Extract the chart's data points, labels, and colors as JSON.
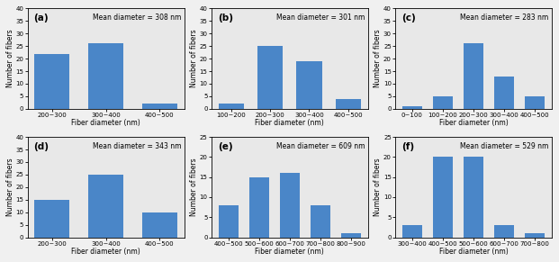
{
  "subplots": [
    {
      "label": "(a)",
      "mean_text": "Mean diameter = 308 nm",
      "categories": [
        "200~300",
        "300~400",
        "400~500"
      ],
      "values": [
        22,
        26,
        2
      ],
      "ylim": [
        0,
        40
      ],
      "yticks": [
        0,
        5,
        10,
        15,
        20,
        25,
        30,
        35,
        40
      ]
    },
    {
      "label": "(b)",
      "mean_text": "Mean diameter = 301 nm",
      "categories": [
        "100~200",
        "200~300",
        "300~400",
        "400~500"
      ],
      "values": [
        2,
        25,
        19,
        4
      ],
      "ylim": [
        0,
        40
      ],
      "yticks": [
        0,
        5,
        10,
        15,
        20,
        25,
        30,
        35,
        40
      ]
    },
    {
      "label": "(c)",
      "mean_text": "Mean diameter = 283 nm",
      "categories": [
        "0~100",
        "100~200",
        "200~300",
        "300~400",
        "400~500"
      ],
      "values": [
        1,
        5,
        26,
        13,
        5
      ],
      "ylim": [
        0,
        40
      ],
      "yticks": [
        0,
        5,
        10,
        15,
        20,
        25,
        30,
        35,
        40
      ]
    },
    {
      "label": "(d)",
      "mean_text": "Mean diameter = 343 nm",
      "categories": [
        "200~300",
        "300~400",
        "400~500"
      ],
      "values": [
        15,
        25,
        10
      ],
      "ylim": [
        0,
        40
      ],
      "yticks": [
        0,
        5,
        10,
        15,
        20,
        25,
        30,
        35,
        40
      ]
    },
    {
      "label": "(e)",
      "mean_text": "Mean diameter = 609 nm",
      "categories": [
        "400~500",
        "500~600",
        "600~700",
        "700~800",
        "800~900"
      ],
      "values": [
        8,
        15,
        16,
        8,
        1
      ],
      "ylim": [
        0,
        25
      ],
      "yticks": [
        0,
        5,
        10,
        15,
        20,
        25
      ]
    },
    {
      "label": "(f)",
      "mean_text": "Mean diameter = 529 nm",
      "categories": [
        "300~400",
        "400~500",
        "500~600",
        "600~700",
        "700~800"
      ],
      "values": [
        3,
        20,
        20,
        3,
        1
      ],
      "ylim": [
        0,
        25
      ],
      "yticks": [
        0,
        5,
        10,
        15,
        20,
        25
      ]
    }
  ],
  "bar_color": "#4a86c8",
  "xlabel": "Fiber diameter (nm)",
  "ylabel": "Number of fibers",
  "label_fontsize": 5.5,
  "tick_fontsize": 5.0,
  "annotation_fontsize": 5.5,
  "panel_label_fontsize": 7.5,
  "fig_facecolor": "#f0f0f0"
}
